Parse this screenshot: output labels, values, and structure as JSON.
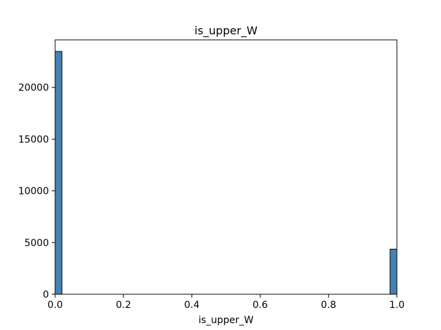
{
  "chart_data": {
    "type": "bar",
    "title": "is_upper_W",
    "xlabel": "is_upper_W",
    "ylabel": "",
    "xlim": [
      0,
      1
    ],
    "ylim": [
      0,
      24600
    ],
    "grid": false,
    "bar_color": "#4682b4",
    "edge_color": "#000000",
    "bins": [
      {
        "x0": 0.0,
        "x1": 0.02,
        "value": 23480
      },
      {
        "x0": 0.98,
        "x1": 1.0,
        "value": 4360
      }
    ],
    "xticks": [
      {
        "value": 0.0,
        "label": "0.0"
      },
      {
        "value": 0.2,
        "label": "0.2"
      },
      {
        "value": 0.4,
        "label": "0.4"
      },
      {
        "value": 0.6,
        "label": "0.6"
      },
      {
        "value": 0.8,
        "label": "0.8"
      },
      {
        "value": 1.0,
        "label": "1.0"
      }
    ],
    "yticks": [
      {
        "value": 0,
        "label": "0"
      },
      {
        "value": 5000,
        "label": "5000"
      },
      {
        "value": 10000,
        "label": "10000"
      },
      {
        "value": 15000,
        "label": "15000"
      },
      {
        "value": 20000,
        "label": "20000"
      }
    ]
  }
}
